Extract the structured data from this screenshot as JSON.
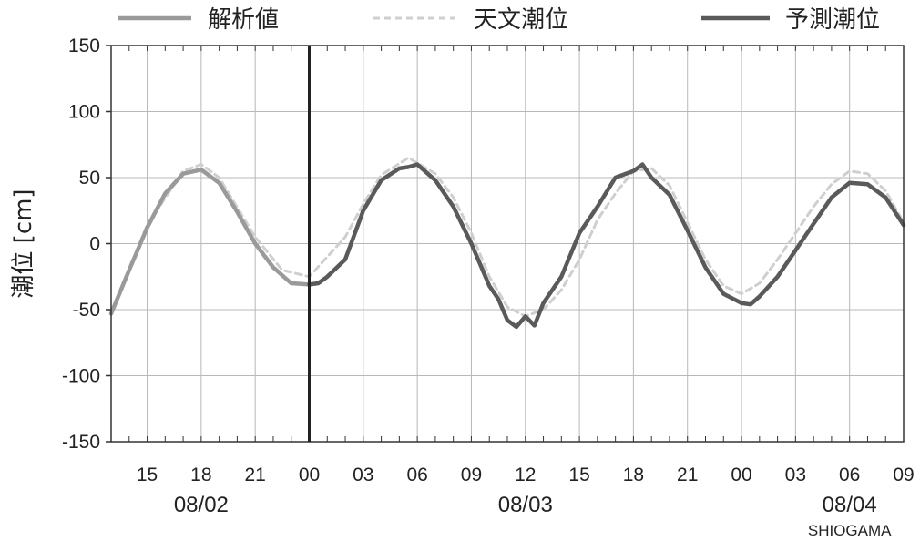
{
  "chart_data": {
    "type": "line",
    "ylabel": "潮位 [cm]",
    "xlabel": "",
    "ylim": [
      -150,
      150
    ],
    "yticks": [
      -150,
      -100,
      -50,
      0,
      50,
      100,
      150
    ],
    "xlim": [
      "08/02 13:00",
      "08/04 09:00"
    ],
    "x_tick_labels": [
      "15",
      "18",
      "21",
      "00",
      "03",
      "06",
      "09",
      "12",
      "15",
      "18",
      "21",
      "00",
      "03",
      "06",
      "09"
    ],
    "date_labels": [
      "08/02",
      "08/03",
      "08/04"
    ],
    "station": "SHIOGAMA",
    "current_time_marker": "08/03 00:00",
    "grid": true,
    "legend_position": "top",
    "legend": [
      "解析値",
      "天文潮位",
      "予測潮位"
    ],
    "series": [
      {
        "name": "解析値",
        "style": "solid-light",
        "color": "#9a9a9a",
        "x": [
          "08/02 13:00",
          "08/02 14:00",
          "08/02 15:00",
          "08/02 16:00",
          "08/02 17:00",
          "08/02 18:00",
          "08/02 19:00",
          "08/02 20:00",
          "08/02 21:00",
          "08/02 22:00",
          "08/02 23:00",
          "08/03 00:00"
        ],
        "y": [
          -53,
          -20,
          12,
          38,
          53,
          56,
          46,
          24,
          0,
          -18,
          -30,
          -31
        ]
      },
      {
        "name": "天文潮位",
        "style": "dashed",
        "color": "#c8c8c8",
        "x": [
          "08/02 13:00",
          "08/02 15:00",
          "08/02 17:00",
          "08/02 18:00",
          "08/02 19:00",
          "08/02 21:00",
          "08/02 22:30",
          "08/03 00:00",
          "08/03 02:00",
          "08/03 03:00",
          "08/03 04:00",
          "08/03 05:30",
          "08/03 07:00",
          "08/03 08:00",
          "08/03 09:00",
          "08/03 10:00",
          "08/03 11:00",
          "08/03 12:00",
          "08/03 13:00",
          "08/03 14:00",
          "08/03 15:00",
          "08/03 16:00",
          "08/03 17:00",
          "08/03 18:00",
          "08/03 19:00",
          "08/03 20:00",
          "08/03 21:00",
          "08/03 22:00",
          "08/03 23:00",
          "08/04 00:00",
          "08/04 01:00",
          "08/04 02:00",
          "08/04 03:00",
          "08/04 04:00",
          "08/04 05:00",
          "08/04 06:00",
          "08/04 07:00",
          "08/04 08:00",
          "08/04 09:00"
        ],
        "y": [
          -53,
          14,
          55,
          60,
          50,
          5,
          -20,
          -25,
          5,
          30,
          52,
          65,
          53,
          35,
          8,
          -25,
          -48,
          -55,
          -50,
          -35,
          -12,
          18,
          38,
          55,
          57,
          44,
          16,
          -12,
          -32,
          -38,
          -30,
          -12,
          8,
          28,
          45,
          55,
          53,
          40,
          16
        ]
      },
      {
        "name": "予測潮位",
        "style": "solid-dark",
        "color": "#555555",
        "x": [
          "08/03 00:00",
          "08/03 00:30",
          "08/03 01:00",
          "08/03 02:00",
          "08/03 03:00",
          "08/03 04:00",
          "08/03 05:00",
          "08/03 05:30",
          "08/03 06:00",
          "08/03 07:00",
          "08/03 08:00",
          "08/03 09:00",
          "08/03 10:00",
          "08/03 10:30",
          "08/03 11:00",
          "08/03 11:30",
          "08/03 12:00",
          "08/03 12:30",
          "08/03 13:00",
          "08/03 14:00",
          "08/03 15:00",
          "08/03 16:00",
          "08/03 17:00",
          "08/03 18:00",
          "08/03 18:30",
          "08/03 19:00",
          "08/03 20:00",
          "08/03 21:00",
          "08/03 22:00",
          "08/03 23:00",
          "08/04 00:00",
          "08/04 00:30",
          "08/04 01:00",
          "08/04 02:00",
          "08/04 03:00",
          "08/04 04:00",
          "08/04 05:00",
          "08/04 06:00",
          "08/04 07:00",
          "08/04 08:00",
          "08/04 09:00"
        ],
        "y": [
          -31,
          -30,
          -25,
          -12,
          25,
          48,
          57,
          58,
          60,
          48,
          28,
          0,
          -32,
          -42,
          -58,
          -63,
          -55,
          -62,
          -45,
          -25,
          8,
          28,
          50,
          55,
          60,
          50,
          37,
          10,
          -18,
          -38,
          -45,
          -46,
          -40,
          -25,
          -5,
          15,
          35,
          46,
          45,
          35,
          14
        ]
      }
    ]
  }
}
